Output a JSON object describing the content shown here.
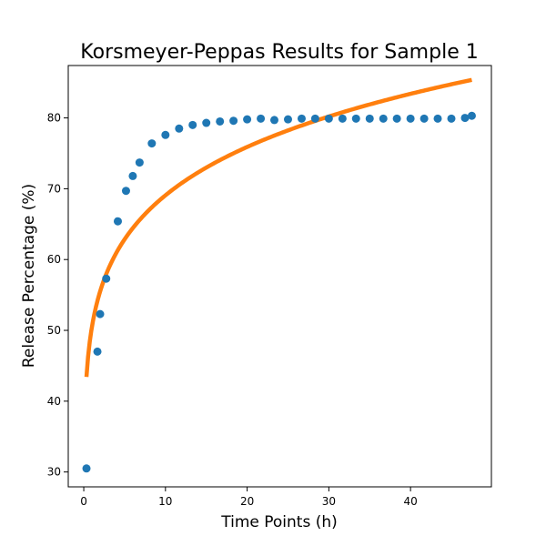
{
  "chart_data": {
    "type": "scatter",
    "title": "Korsmeyer-Peppas Results for Sample 1",
    "xlabel": "Time Points (h)",
    "ylabel": "Release Percentage (%)",
    "xlim": [
      -1.9,
      49.9
    ],
    "ylim": [
      27.9,
      87.4
    ],
    "xticks": [
      0,
      10,
      20,
      30,
      40
    ],
    "yticks": [
      30,
      40,
      50,
      60,
      70,
      80
    ],
    "grid": false,
    "series": [
      {
        "kind": "scatter",
        "color": "#1f77b4",
        "x": [
          0.33,
          1.67,
          2.0,
          2.75,
          4.17,
          5.17,
          6.0,
          6.83,
          8.33,
          10.0,
          11.67,
          13.33,
          15.0,
          16.67,
          18.33,
          20.0,
          21.67,
          23.33,
          25.0,
          26.67,
          28.33,
          30.0,
          31.67,
          33.33,
          35.0,
          36.67,
          38.33,
          40.0,
          41.67,
          43.33,
          45.0,
          46.67,
          47.5
        ],
        "y": [
          30.5,
          47.0,
          52.3,
          57.3,
          65.4,
          69.7,
          71.8,
          73.7,
          76.4,
          77.6,
          78.5,
          79.0,
          79.3,
          79.5,
          79.6,
          79.8,
          79.9,
          79.7,
          79.8,
          79.9,
          79.9,
          79.9,
          79.9,
          79.9,
          79.9,
          79.9,
          79.9,
          79.9,
          79.9,
          79.9,
          79.9,
          80.0,
          80.3
        ]
      },
      {
        "kind": "line",
        "color": "#ff7f0e",
        "model": "k * t^n",
        "k": 50.5,
        "n": 0.136,
        "x_range": [
          0.33,
          47.5
        ]
      }
    ]
  }
}
